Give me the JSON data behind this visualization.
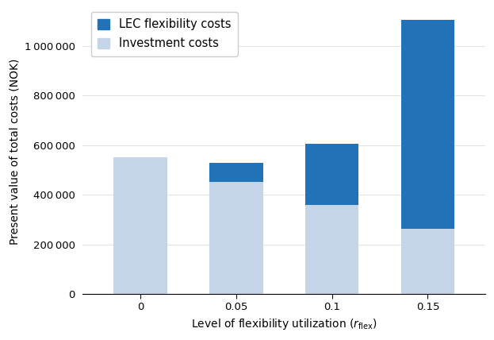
{
  "categories": [
    0,
    0.05,
    0.1,
    0.15
  ],
  "x_labels": [
    "0",
    "0.05",
    "0.1",
    "0.15"
  ],
  "investment_costs": [
    550000,
    453000,
    358000,
    262000
  ],
  "lec_flexibility_costs": [
    0,
    75000,
    248000,
    843000
  ],
  "investment_color": "#c5d5e8",
  "lec_color": "#2272b8",
  "ylabel": "Present value of total costs (NOK)",
  "legend_lec": "LEC flexibility costs",
  "legend_inv": "Investment costs",
  "ylim": [
    0,
    1150000
  ],
  "yticks": [
    0,
    200000,
    400000,
    600000,
    800000,
    1000000
  ],
  "bar_width": 0.028,
  "xlim": [
    -0.03,
    0.18
  ],
  "background_color": "#ffffff",
  "label_fontsize": 10,
  "tick_fontsize": 9.5,
  "legend_fontsize": 10.5
}
